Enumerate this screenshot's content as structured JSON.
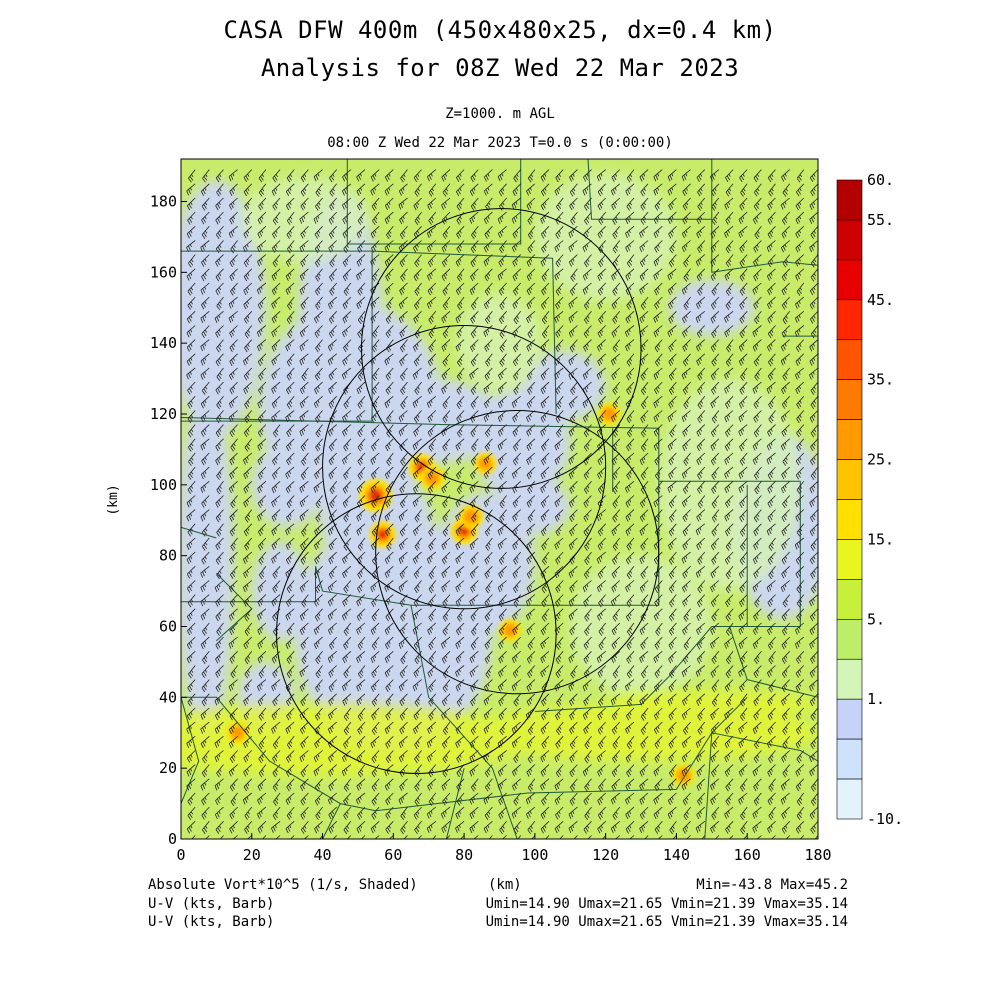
{
  "header": {
    "title_line1": "CASA DFW 400m (450x480x25, dx=0.4 km)",
    "title_line2": "Analysis for 08Z Wed 22 Mar 2023",
    "level": "Z=1000. m AGL",
    "time": "08:00 Z Wed 22 Mar 2023   T=0.0 s (0:00:00)"
  },
  "footer": {
    "field1": "Absolute Vort*10^5 (1/s, Shaded)",
    "field2": "U-V (kts, Barb)",
    "field3": "U-V (kts, Barb)",
    "xunit": "(km)",
    "minmax": "Min=-43.8 Max=45.2",
    "stats2": "Umin=14.90 Umax=21.65 Vmin=21.39 Vmax=35.14",
    "stats3": "Umin=14.90 Umax=21.65 Vmin=21.39 Vmax=35.14"
  },
  "chart_data": {
    "type": "heatmap",
    "xlabel": "",
    "ylabel": "(km)",
    "xlim": [
      0,
      180
    ],
    "ylim": [
      0,
      192
    ],
    "xticks": [
      0,
      20,
      40,
      60,
      80,
      100,
      120,
      140,
      160,
      180
    ],
    "yticks": [
      0,
      20,
      40,
      60,
      80,
      100,
      120,
      140,
      160,
      180
    ],
    "colorbar": {
      "labels": [
        "60.",
        "55.",
        "45.",
        "35.",
        "25.",
        "15.",
        "5.",
        "1.",
        "-10."
      ],
      "colors": [
        "#b30000",
        "#cc0000",
        "#e60000",
        "#ff2600",
        "#ff5500",
        "#ff7a00",
        "#ff9a00",
        "#ffc400",
        "#ffe000",
        "#e8f51e",
        "#c6f03a",
        "#bdee6a",
        "#d4f5b8",
        "#c6d2f7",
        "#cfe2fb",
        "#e4f2fb"
      ]
    },
    "background_field": "#c8ec6a",
    "radar_rings": [
      {
        "cx": 90.5,
        "cy": 138.5,
        "r": 39.5
      },
      {
        "cx": 80,
        "cy": 105,
        "r": 40
      },
      {
        "cx": 95,
        "cy": 81,
        "r": 40
      },
      {
        "cx": 66.5,
        "cy": 58,
        "r": 39.5
      }
    ],
    "wind_barbs": {
      "u_range": [
        14.9,
        21.65
      ],
      "v_range": [
        21.39,
        35.14
      ],
      "spacing_km": 4
    },
    "vorticity_maxima": [
      {
        "x": 55,
        "y": 97,
        "value": 45
      },
      {
        "x": 68,
        "y": 105,
        "value": 30
      },
      {
        "x": 71,
        "y": 102,
        "value": 25
      },
      {
        "x": 57,
        "y": 86,
        "value": 30
      },
      {
        "x": 80,
        "y": 87,
        "value": 30
      },
      {
        "x": 82,
        "y": 91,
        "value": 25
      },
      {
        "x": 86,
        "y": 106,
        "value": 20
      },
      {
        "x": 121,
        "y": 120,
        "value": 20
      },
      {
        "x": 93,
        "y": 59,
        "value": 20
      },
      {
        "x": 142,
        "y": 18,
        "value": 20
      },
      {
        "x": 16,
        "y": 30,
        "value": 20
      }
    ]
  }
}
